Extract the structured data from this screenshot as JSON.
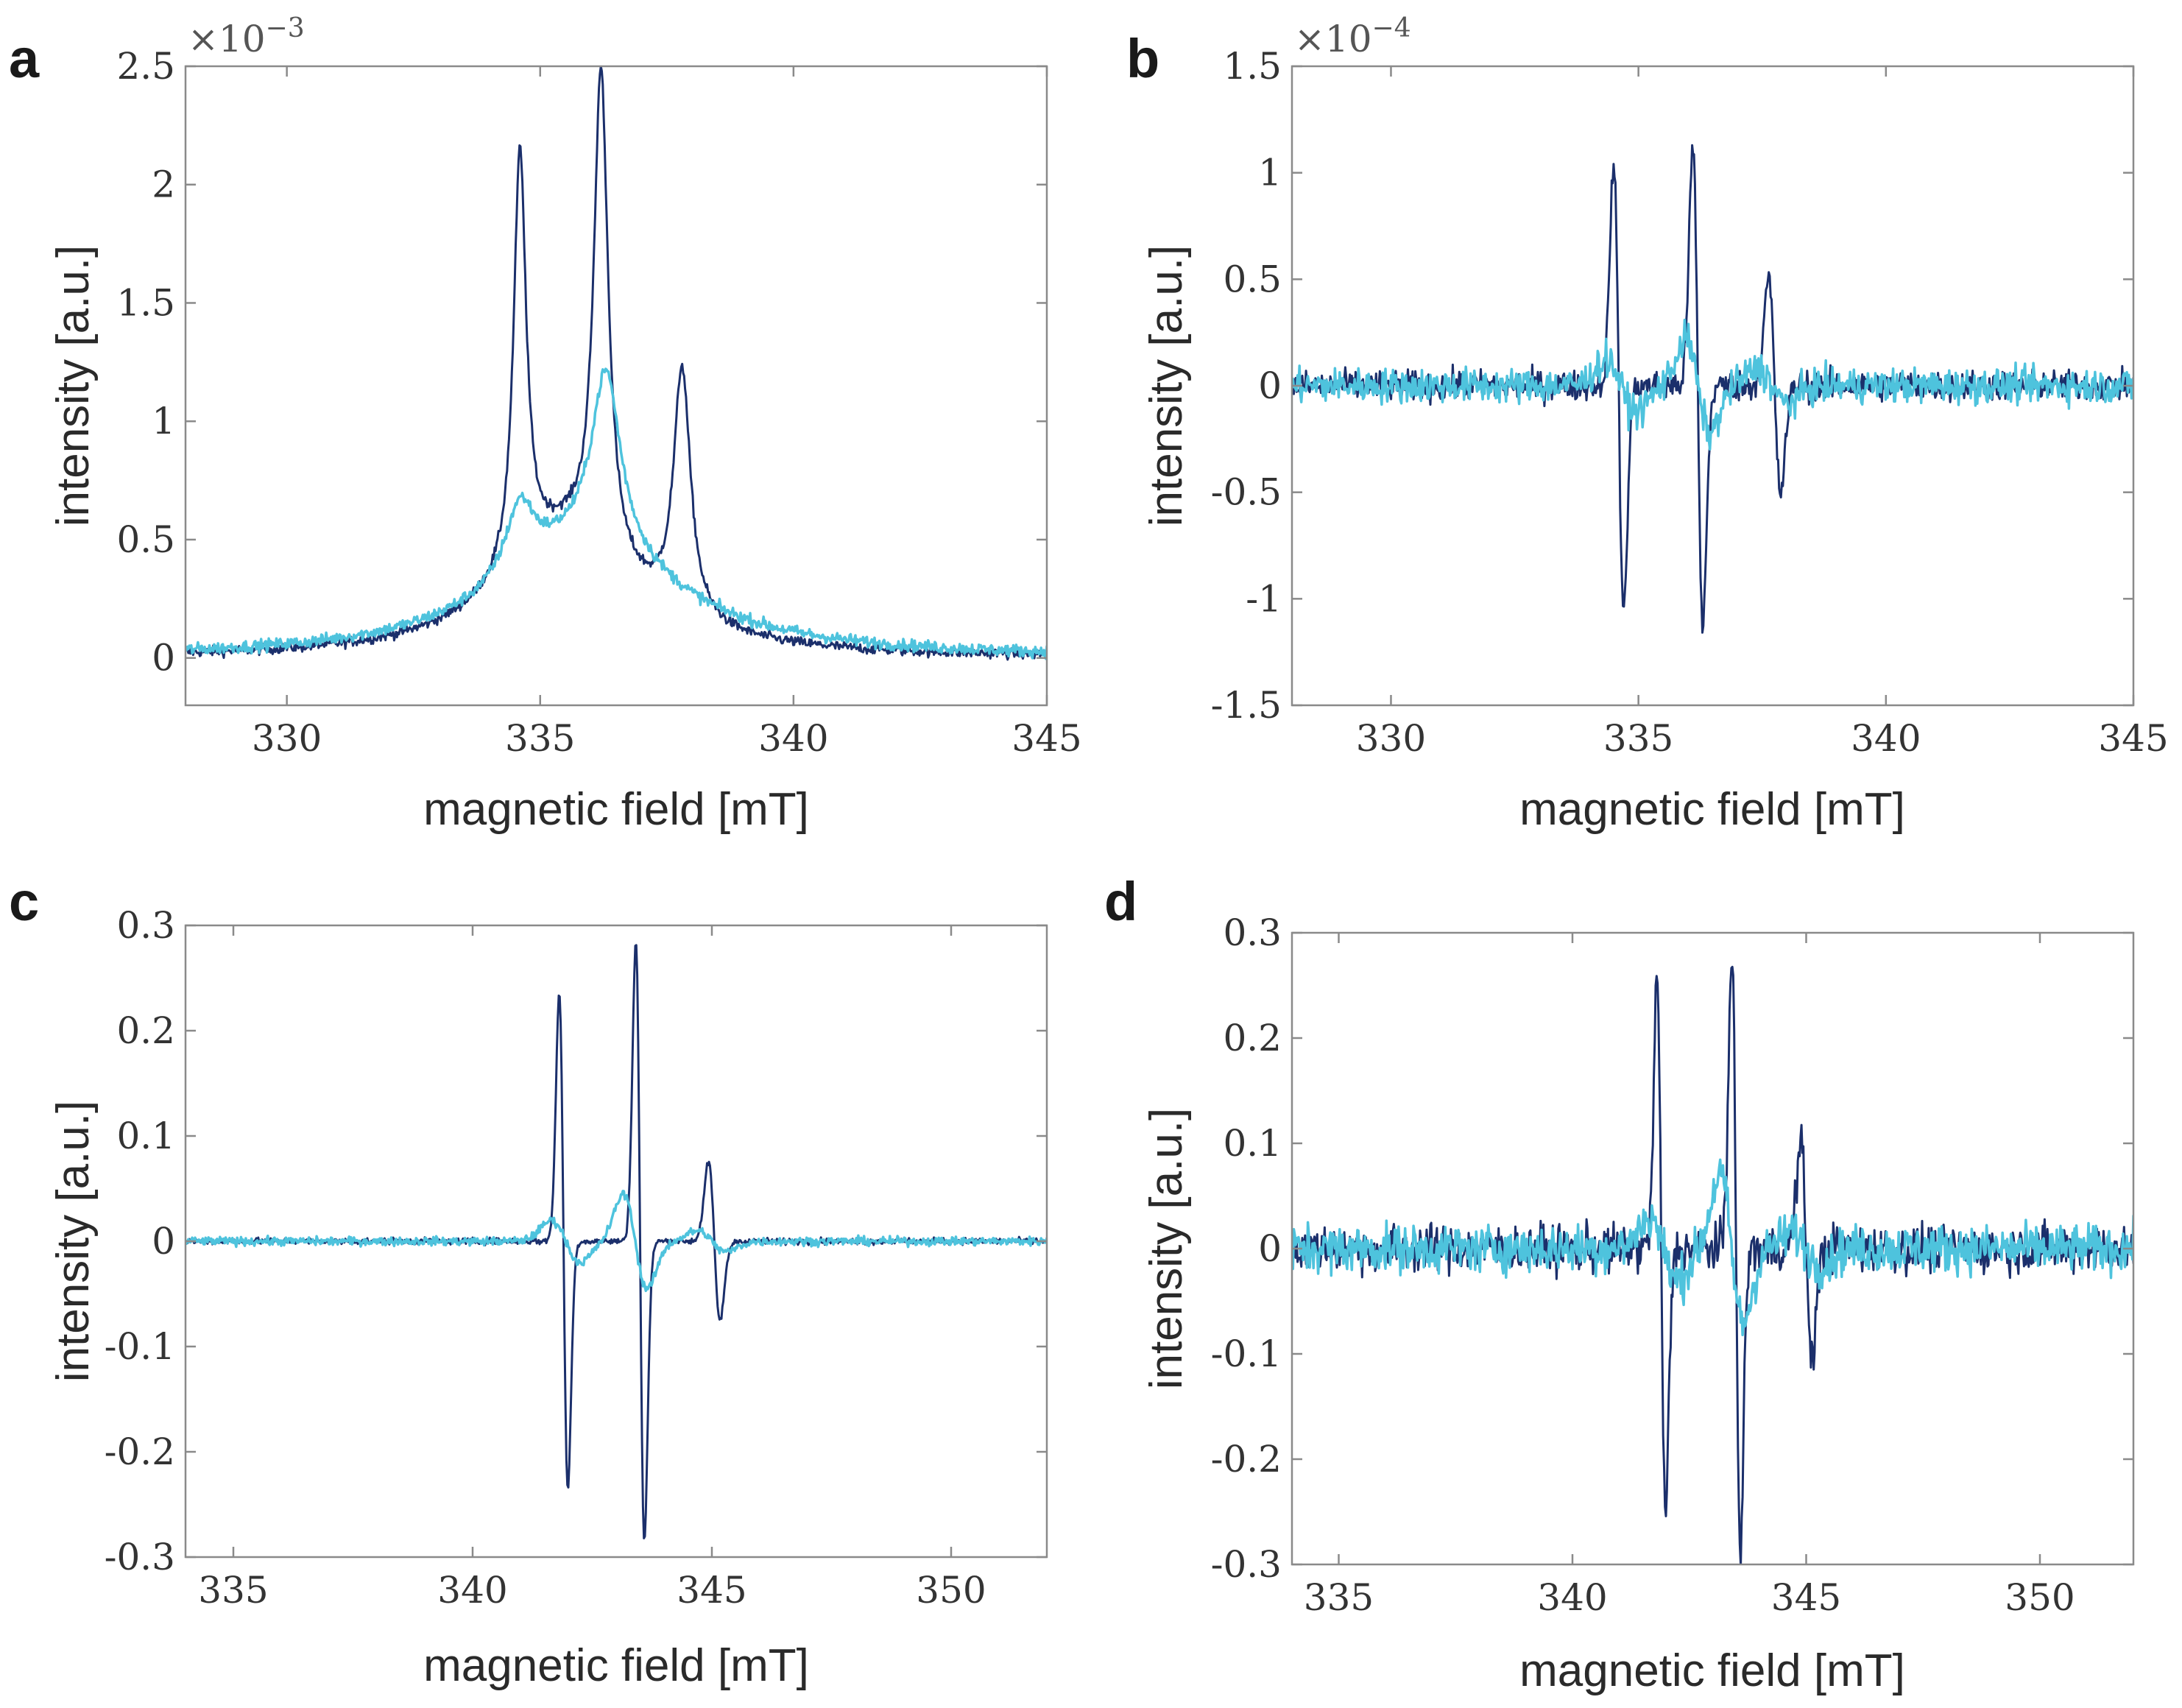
{
  "figure": {
    "series_colors": {
      "dark": "#1b2f6b",
      "light": "#4ec3dd"
    }
  },
  "chart_data": [
    {
      "panel": "a",
      "type": "line",
      "xlabel": "magnetic field [mT]",
      "ylabel": "intensity [a.u.]",
      "xlim": [
        328,
        345
      ],
      "ylim": [
        -0.0002,
        0.0025
      ],
      "xticks": [
        330,
        335,
        340,
        345
      ],
      "xtick_labels": [
        "330",
        "335",
        "340",
        "345"
      ],
      "yticks": [
        0,
        0.0005,
        0.001,
        0.0015,
        0.002,
        0.0025
      ],
      "ytick_labels": [
        "0",
        "0.5",
        "1",
        "1.5",
        "2",
        "2.5"
      ],
      "y_exponent": {
        "prefix": "×10",
        "power": "−3"
      },
      "series": [
        {
          "name": "dark",
          "shape": "absorption",
          "noise": 2.2e-05,
          "peaks": [
            {
              "x": 334.6,
              "amp": 0.00175,
              "w": 0.15
            },
            {
              "x": 336.2,
              "amp": 0.00205,
              "w": 0.17
            },
            {
              "x": 337.8,
              "amp": 0.00105,
              "w": 0.2
            },
            {
              "x": 335.5,
              "amp": 0.0005,
              "w": 1.6
            }
          ]
        },
        {
          "name": "light",
          "shape": "absorption",
          "noise": 2.5e-05,
          "peaks": [
            {
              "x": 334.6,
              "amp": 0.0003,
              "w": 0.35
            },
            {
              "x": 336.3,
              "amp": 0.00075,
              "w": 0.35
            },
            {
              "x": 335.9,
              "amp": 0.00047,
              "w": 2.2
            }
          ]
        }
      ]
    },
    {
      "panel": "b",
      "type": "line",
      "xlabel": "magnetic field [mT]",
      "ylabel": "intensity [a.u.]",
      "xlim": [
        328,
        345
      ],
      "ylim": [
        -0.00015,
        0.00015
      ],
      "xticks": [
        330,
        335,
        340,
        345
      ],
      "xtick_labels": [
        "330",
        "335",
        "340",
        "345"
      ],
      "yticks": [
        -0.00015,
        -0.0001,
        -5e-05,
        0,
        5e-05,
        0.0001,
        0.00015
      ],
      "ytick_labels": [
        "-1.5",
        "-1",
        "-0.5",
        "0",
        "0.5",
        "1",
        "1.5"
      ],
      "y_exponent": {
        "prefix": "×10",
        "power": "−4"
      },
      "series": [
        {
          "name": "dark",
          "shape": "derivative",
          "noise": 7e-06,
          "peaks": [
            {
              "x": 334.6,
              "amp": 0.000105,
              "w": 0.1
            },
            {
              "x": 336.2,
              "amp": 0.000112,
              "w": 0.1
            },
            {
              "x": 337.75,
              "amp": 5e-05,
              "w": 0.12
            }
          ]
        },
        {
          "name": "light",
          "shape": "derivative",
          "noise": 8e-06,
          "peaks": [
            {
              "x": 334.65,
              "amp": 1.2e-05,
              "w": 0.3
            },
            {
              "x": 336.2,
              "amp": 2.2e-05,
              "w": 0.25
            },
            {
              "x": 337.7,
              "amp": 8e-06,
              "w": 0.3
            }
          ]
        }
      ]
    },
    {
      "panel": "c",
      "type": "line",
      "xlabel": "magnetic field [mT]",
      "ylabel": "intensity [a.u.]",
      "xlim": [
        334,
        352
      ],
      "ylim": [
        -0.3,
        0.3
      ],
      "xticks": [
        335,
        340,
        345,
        350
      ],
      "xtick_labels": [
        "335",
        "340",
        "345",
        "350"
      ],
      "yticks": [
        -0.3,
        -0.2,
        -0.1,
        0,
        0.1,
        0.2,
        0.3
      ],
      "ytick_labels": [
        "-0.3",
        "-0.2",
        "-0.1",
        "0",
        "0.1",
        "0.2",
        "0.3"
      ],
      "y_exponent": null,
      "series": [
        {
          "name": "dark",
          "shape": "derivative",
          "noise": 0.003,
          "peaks": [
            {
              "x": 341.9,
              "amp": 0.235,
              "w": 0.09
            },
            {
              "x": 343.5,
              "amp": 0.285,
              "w": 0.09
            },
            {
              "x": 345.05,
              "amp": 0.075,
              "w": 0.12
            }
          ]
        },
        {
          "name": "light",
          "shape": "derivative",
          "noise": 0.004,
          "peaks": [
            {
              "x": 341.95,
              "amp": 0.02,
              "w": 0.3
            },
            {
              "x": 343.4,
              "amp": 0.045,
              "w": 0.25
            },
            {
              "x": 345.0,
              "amp": 0.01,
              "w": 0.3
            }
          ]
        }
      ]
    },
    {
      "panel": "d",
      "type": "line",
      "xlabel": "magnetic field [mT]",
      "ylabel": "intensity [a.u.]",
      "xlim": [
        334,
        352
      ],
      "ylim": [
        -0.3,
        0.3
      ],
      "xticks": [
        335,
        340,
        345,
        350
      ],
      "xtick_labels": [
        "335",
        "340",
        "345",
        "350"
      ],
      "yticks": [
        -0.3,
        -0.2,
        -0.1,
        0,
        0.1,
        0.2,
        0.3
      ],
      "ytick_labels": [
        "-0.3",
        "-0.2",
        "-0.1",
        "0",
        "0.1",
        "0.2",
        "0.3"
      ],
      "y_exponent": null,
      "series": [
        {
          "name": "dark",
          "shape": "derivative",
          "noise": 0.022,
          "peaks": [
            {
              "x": 341.9,
              "amp": 0.255,
              "w": 0.09
            },
            {
              "x": 343.5,
              "amp": 0.29,
              "w": 0.09
            },
            {
              "x": 345.0,
              "amp": 0.1,
              "w": 0.12
            }
          ]
        },
        {
          "name": "light",
          "shape": "derivative",
          "noise": 0.022,
          "peaks": [
            {
              "x": 341.95,
              "amp": 0.03,
              "w": 0.3
            },
            {
              "x": 343.4,
              "amp": 0.07,
              "w": 0.25
            },
            {
              "x": 345.0,
              "amp": 0.015,
              "w": 0.3
            }
          ]
        }
      ]
    }
  ]
}
